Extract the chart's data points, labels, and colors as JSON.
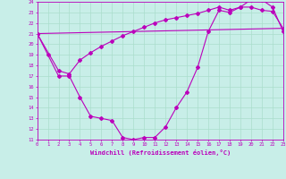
{
  "xlabel": "Windchill (Refroidissement éolien,°C)",
  "background_color": "#c8eee8",
  "line_color": "#bb00bb",
  "grid_color": "#aaddcc",
  "xmin": 0,
  "xmax": 23,
  "ymin": 11,
  "ymax": 24,
  "line1_x": [
    0,
    1,
    2,
    3,
    4,
    5,
    6,
    7,
    8,
    9,
    10,
    11,
    12,
    13,
    14,
    15,
    16,
    17,
    18,
    19,
    20,
    21,
    22,
    23
  ],
  "line1_y": [
    21.0,
    19.0,
    17.0,
    17.0,
    15.0,
    13.2,
    13.0,
    12.8,
    11.2,
    11.0,
    11.2,
    11.2,
    12.2,
    14.0,
    15.5,
    17.8,
    21.2,
    23.2,
    23.0,
    23.5,
    24.2,
    24.2,
    23.5,
    21.2
  ],
  "line2_x": [
    0,
    2,
    3,
    4,
    5,
    6,
    7,
    8,
    9,
    10,
    11,
    12,
    13,
    14,
    15,
    16,
    17,
    18,
    19,
    20,
    21,
    22,
    23
  ],
  "line2_y": [
    21.0,
    17.5,
    17.2,
    18.5,
    19.2,
    19.8,
    20.3,
    20.8,
    21.2,
    21.6,
    22.0,
    22.3,
    22.5,
    22.7,
    22.9,
    23.2,
    23.5,
    23.2,
    23.5,
    23.5,
    23.2,
    23.1,
    21.5
  ],
  "line3_x": [
    0,
    23
  ],
  "line3_y": [
    21.0,
    21.5
  ]
}
